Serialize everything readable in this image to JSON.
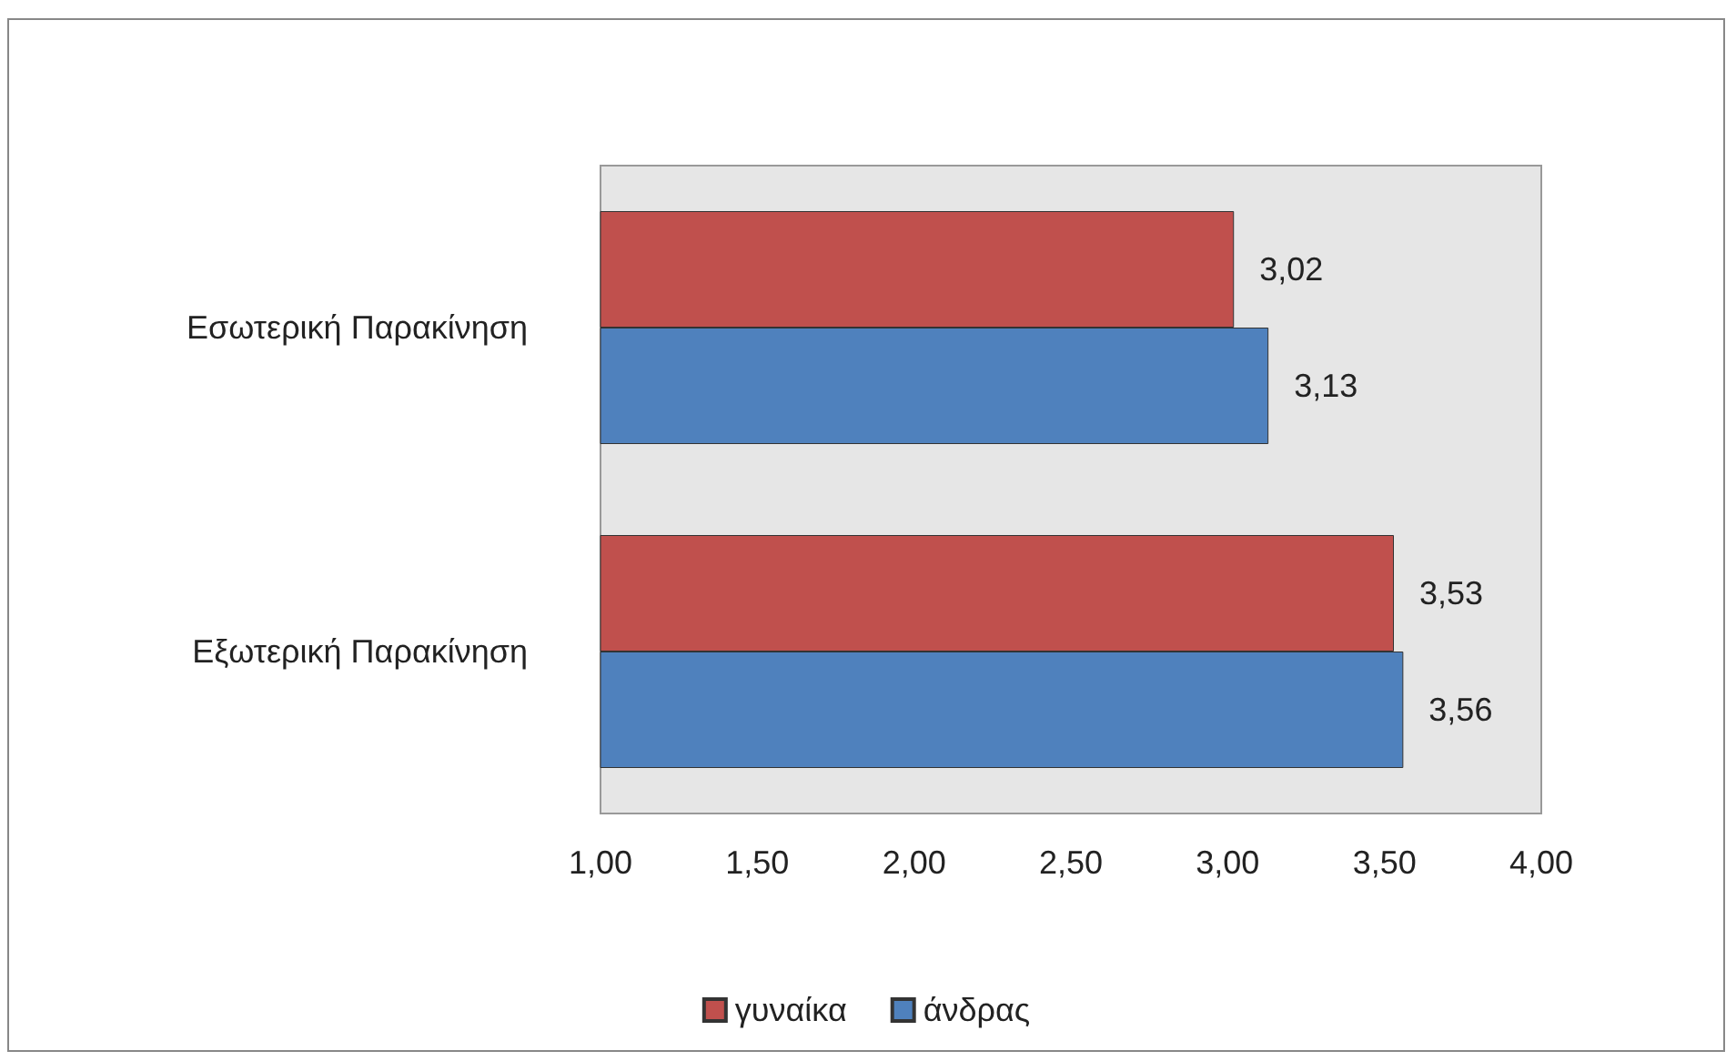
{
  "chart_data": {
    "type": "bar",
    "orientation": "horizontal",
    "categories": [
      "Εσωτερική Παρακίνηση",
      "Εξωτερική Παρακίνηση"
    ],
    "series": [
      {
        "name": "γυναίκα",
        "color": "#c0504d",
        "values": [
          3.02,
          3.53
        ],
        "value_labels": [
          "3,02",
          "3,53"
        ]
      },
      {
        "name": "άνδρας",
        "color": "#4f81bd",
        "values": [
          3.13,
          3.56
        ],
        "value_labels": [
          "3,13",
          "3,56"
        ]
      }
    ],
    "xlim": [
      1,
      4
    ],
    "xticks": [
      {
        "value": 1,
        "label": "1,00"
      },
      {
        "value": 1.5,
        "label": "1,50"
      },
      {
        "value": 2,
        "label": "2,00"
      },
      {
        "value": 2.5,
        "label": "2,50"
      },
      {
        "value": 3,
        "label": "3,00"
      },
      {
        "value": 3.5,
        "label": "3,50"
      },
      {
        "value": 4,
        "label": "4,00"
      }
    ],
    "legend": "bottom"
  }
}
